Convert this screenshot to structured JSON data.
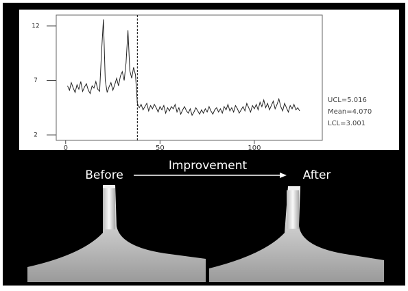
{
  "chart_data": {
    "type": "line",
    "x": [
      1,
      2,
      3,
      4,
      5,
      6,
      7,
      8,
      9,
      10,
      11,
      12,
      13,
      14,
      15,
      16,
      17,
      18,
      19,
      20,
      21,
      22,
      23,
      24,
      25,
      26,
      27,
      28,
      29,
      30,
      31,
      32,
      33,
      34,
      35,
      36,
      37,
      38,
      39,
      40,
      41,
      42,
      43,
      44,
      45,
      46,
      47,
      48,
      49,
      50,
      51,
      52,
      53,
      54,
      55,
      56,
      57,
      58,
      59,
      60,
      61,
      62,
      63,
      64,
      65,
      66,
      67,
      68,
      69,
      70,
      71,
      72,
      73,
      74,
      75,
      76,
      77,
      78,
      79,
      80,
      81,
      82,
      83,
      84,
      85,
      86,
      87,
      88,
      89,
      90,
      91,
      92,
      93,
      94,
      95,
      96,
      97,
      98,
      99,
      100,
      101,
      102,
      103,
      104,
      105,
      106,
      107,
      108,
      109,
      110,
      111,
      112,
      113,
      114,
      115,
      116,
      117,
      118,
      119,
      120,
      121,
      122,
      123,
      124
    ],
    "values": [
      6.5,
      6.1,
      6.8,
      6.3,
      5.9,
      6.6,
      6.2,
      6.9,
      6.0,
      6.4,
      6.7,
      6.1,
      5.8,
      6.5,
      6.3,
      6.9,
      6.2,
      6.0,
      9.5,
      12.6,
      7.0,
      5.9,
      6.4,
      6.8,
      6.1,
      6.6,
      7.2,
      6.5,
      7.4,
      7.8,
      7.0,
      8.6,
      11.6,
      7.9,
      7.2,
      8.2,
      7.5,
      4.9,
      4.5,
      4.8,
      4.3,
      4.6,
      4.9,
      4.2,
      4.7,
      4.4,
      4.8,
      4.5,
      4.1,
      4.6,
      4.3,
      4.7,
      4.0,
      4.5,
      4.2,
      4.6,
      4.4,
      4.8,
      4.1,
      4.5,
      3.9,
      4.3,
      4.6,
      4.2,
      4.0,
      4.4,
      3.8,
      4.1,
      4.5,
      4.2,
      3.9,
      4.3,
      4.0,
      4.4,
      4.1,
      4.6,
      4.2,
      3.9,
      4.3,
      4.5,
      4.1,
      4.4,
      4.0,
      4.6,
      4.3,
      4.8,
      4.2,
      4.5,
      4.1,
      4.7,
      4.4,
      4.0,
      4.3,
      4.6,
      4.2,
      4.9,
      4.5,
      4.1,
      4.7,
      4.4,
      4.8,
      4.3,
      5.0,
      4.6,
      5.2,
      4.5,
      4.9,
      4.3,
      4.7,
      5.1,
      4.4,
      4.8,
      5.3,
      4.6,
      4.2,
      4.9,
      4.5,
      4.1,
      4.7,
      4.4,
      4.8,
      4.3,
      4.5,
      4.2
    ],
    "color": "#222222",
    "xlim": [
      -5,
      136
    ],
    "ylim": [
      1.5,
      13
    ],
    "xticks": [
      0,
      50,
      100
    ],
    "yticks": [
      2,
      7,
      12
    ],
    "phase_split_x": 38,
    "annotations": [
      "UCL=5.016",
      "Mean=4.070",
      "LCL=3.001"
    ]
  },
  "photo_labels": {
    "before": "Before",
    "arrow": "Improvement",
    "after": "After"
  }
}
